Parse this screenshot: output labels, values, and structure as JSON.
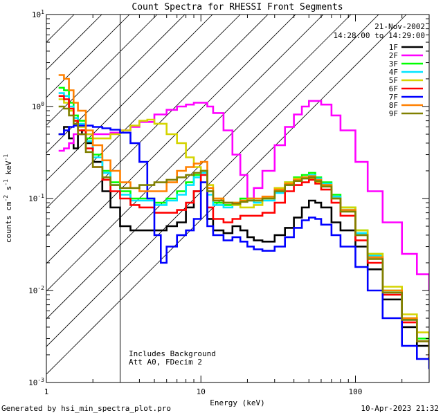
{
  "chart_data": {
    "type": "line",
    "title": "Count Spectra for RHESSI Front Segments",
    "xlabel": "Energy (keV)",
    "ylabel_parts": [
      "counts cm",
      "-2",
      " s",
      "-1",
      " keV",
      "-1"
    ],
    "xscale": "log",
    "yscale": "log",
    "xlim": [
      1,
      300
    ],
    "ylim": [
      0.001,
      10
    ],
    "x_ticks": [
      {
        "v": 1,
        "label": "1"
      },
      {
        "v": 10,
        "label": "10"
      },
      {
        "v": 100,
        "label": "100"
      }
    ],
    "y_ticks": [
      {
        "v": 0.001,
        "base": "10",
        "exp": "-3"
      },
      {
        "v": 0.01,
        "base": "10",
        "exp": "-2"
      },
      {
        "v": 0.1,
        "base": "10",
        "exp": "-1"
      },
      {
        "v": 1,
        "base": "10",
        "exp": "0"
      },
      {
        "v": 10,
        "base": "10",
        "exp": "1"
      }
    ],
    "date": "21-Nov-2002",
    "time_range": "14:28:00 to 14:29:00",
    "hatched_region": [
      1,
      3
    ],
    "annotations": [
      "Includes Background",
      "Att A0, FDecim 2"
    ],
    "series": [
      {
        "name": "1F",
        "color": "#000000",
        "x": [
          1.2,
          1.3,
          1.4,
          1.5,
          1.6,
          1.7,
          1.8,
          2,
          2.3,
          2.6,
          3,
          3.5,
          4,
          5,
          6,
          7,
          8,
          9,
          10,
          11,
          12,
          14,
          16,
          18,
          20,
          22,
          25,
          30,
          35,
          40,
          45,
          50,
          55,
          60,
          70,
          80,
          100,
          120,
          150,
          200,
          250,
          300
        ],
        "y": [
          0.5,
          0.6,
          0.45,
          0.35,
          0.5,
          0.55,
          0.4,
          0.25,
          0.12,
          0.08,
          0.05,
          0.045,
          0.045,
          0.045,
          0.05,
          0.055,
          0.08,
          0.12,
          0.2,
          0.06,
          0.045,
          0.042,
          0.05,
          0.045,
          0.038,
          0.035,
          0.034,
          0.04,
          0.048,
          0.062,
          0.08,
          0.095,
          0.09,
          0.08,
          0.055,
          0.045,
          0.03,
          0.017,
          0.008,
          0.004,
          0.0025,
          0.0018
        ]
      },
      {
        "name": "2F",
        "color": "#ff00ff",
        "x": [
          1.2,
          1.3,
          1.4,
          1.5,
          1.6,
          1.8,
          2,
          2.3,
          2.6,
          3,
          3.5,
          4,
          5,
          6,
          7,
          8,
          9,
          10,
          11,
          12,
          14,
          16,
          18,
          20,
          22,
          25,
          30,
          35,
          40,
          45,
          50,
          55,
          60,
          70,
          80,
          100,
          120,
          150,
          200,
          250,
          300
        ],
        "y": [
          0.33,
          0.35,
          0.4,
          0.5,
          0.5,
          0.5,
          0.5,
          0.5,
          0.52,
          0.55,
          0.6,
          0.68,
          0.82,
          0.92,
          1.0,
          1.05,
          1.1,
          1.1,
          1.0,
          0.85,
          0.55,
          0.3,
          0.18,
          0.1,
          0.13,
          0.2,
          0.38,
          0.6,
          0.82,
          1.0,
          1.15,
          1.15,
          1.05,
          0.8,
          0.55,
          0.25,
          0.12,
          0.055,
          0.025,
          0.015,
          0.01
        ]
      },
      {
        "name": "3F",
        "color": "#00ff00",
        "x": [
          1.2,
          1.3,
          1.4,
          1.5,
          1.6,
          1.8,
          2,
          2.3,
          2.6,
          3,
          3.5,
          4,
          5,
          6,
          7,
          8,
          9,
          10,
          11,
          12,
          14,
          16,
          18,
          20,
          22,
          25,
          30,
          35,
          40,
          45,
          50,
          55,
          60,
          70,
          80,
          100,
          120,
          150,
          200,
          250,
          300
        ],
        "y": [
          1.6,
          1.5,
          1.1,
          0.8,
          0.7,
          0.45,
          0.3,
          0.2,
          0.15,
          0.12,
          0.1,
          0.1,
          0.09,
          0.1,
          0.12,
          0.15,
          0.18,
          0.2,
          0.12,
          0.09,
          0.085,
          0.09,
          0.1,
          0.1,
          0.095,
          0.1,
          0.12,
          0.15,
          0.17,
          0.18,
          0.19,
          0.17,
          0.15,
          0.11,
          0.08,
          0.045,
          0.025,
          0.01,
          0.005,
          0.003,
          0.002
        ]
      },
      {
        "name": "4F",
        "color": "#00e5ff",
        "x": [
          1.2,
          1.3,
          1.4,
          1.5,
          1.6,
          1.8,
          2,
          2.3,
          2.6,
          3,
          3.5,
          4,
          5,
          6,
          7,
          8,
          9,
          10,
          11,
          12,
          14,
          16,
          18,
          20,
          22,
          25,
          30,
          35,
          40,
          45,
          50,
          55,
          60,
          70,
          80,
          100,
          120,
          150,
          200,
          250,
          300
        ],
        "y": [
          1.4,
          1.3,
          1.0,
          0.75,
          0.65,
          0.42,
          0.28,
          0.19,
          0.14,
          0.11,
          0.095,
          0.095,
          0.085,
          0.095,
          0.11,
          0.14,
          0.17,
          0.19,
          0.11,
          0.085,
          0.08,
          0.085,
          0.095,
          0.095,
          0.09,
          0.095,
          0.115,
          0.14,
          0.16,
          0.17,
          0.18,
          0.165,
          0.145,
          0.105,
          0.075,
          0.042,
          0.024,
          0.0095,
          0.0048,
          0.0028,
          0.0019
        ]
      },
      {
        "name": "5F",
        "color": "#d4d400",
        "x": [
          1.2,
          1.3,
          1.4,
          1.5,
          1.6,
          1.8,
          2,
          2.3,
          2.6,
          3,
          3.5,
          4,
          4.5,
          5,
          6,
          7,
          8,
          9,
          10,
          11,
          12,
          14,
          16,
          18,
          20,
          22,
          25,
          30,
          35,
          40,
          45,
          50,
          55,
          60,
          70,
          80,
          100,
          120,
          150,
          200,
          250,
          300
        ],
        "y": [
          1.2,
          1.1,
          0.9,
          0.7,
          0.6,
          0.5,
          0.45,
          0.45,
          0.5,
          0.55,
          0.62,
          0.7,
          0.72,
          0.65,
          0.5,
          0.4,
          0.28,
          0.22,
          0.2,
          0.14,
          0.1,
          0.09,
          0.085,
          0.08,
          0.08,
          0.085,
          0.1,
          0.13,
          0.15,
          0.165,
          0.17,
          0.165,
          0.15,
          0.14,
          0.1,
          0.08,
          0.045,
          0.025,
          0.011,
          0.0055,
          0.0035,
          0.0025
        ]
      },
      {
        "name": "6F",
        "color": "#ff0000",
        "x": [
          1.2,
          1.3,
          1.4,
          1.5,
          1.6,
          1.8,
          2,
          2.3,
          2.6,
          3,
          3.5,
          4,
          5,
          6,
          7,
          8,
          9,
          10,
          11,
          12,
          14,
          16,
          18,
          20,
          22,
          25,
          30,
          35,
          40,
          45,
          50,
          55,
          60,
          70,
          80,
          100,
          120,
          150,
          200,
          250,
          300
        ],
        "y": [
          1.3,
          1.2,
          0.95,
          0.7,
          0.55,
          0.35,
          0.22,
          0.16,
          0.12,
          0.1,
          0.085,
          0.08,
          0.07,
          0.07,
          0.075,
          0.09,
          0.12,
          0.18,
          0.08,
          0.06,
          0.055,
          0.06,
          0.065,
          0.065,
          0.065,
          0.07,
          0.09,
          0.12,
          0.14,
          0.15,
          0.16,
          0.145,
          0.125,
          0.09,
          0.065,
          0.035,
          0.02,
          0.009,
          0.0045,
          0.0028,
          0.0019
        ]
      },
      {
        "name": "7F",
        "color": "#0000ff",
        "x": [
          1.2,
          1.3,
          1.4,
          1.5,
          1.6,
          1.8,
          2,
          2.3,
          2.6,
          3,
          3.5,
          4,
          4.5,
          5,
          5.5,
          6,
          7,
          8,
          9,
          10,
          11,
          12,
          14,
          16,
          18,
          20,
          22,
          25,
          30,
          35,
          40,
          45,
          50,
          55,
          60,
          70,
          80,
          100,
          120,
          150,
          200,
          250,
          300
        ],
        "y": [
          0.5,
          0.55,
          0.6,
          0.62,
          0.62,
          0.62,
          0.6,
          0.58,
          0.56,
          0.52,
          0.4,
          0.25,
          0.1,
          0.04,
          0.02,
          0.03,
          0.04,
          0.045,
          0.06,
          0.15,
          0.05,
          0.04,
          0.035,
          0.038,
          0.034,
          0.03,
          0.028,
          0.027,
          0.03,
          0.038,
          0.048,
          0.058,
          0.062,
          0.06,
          0.052,
          0.04,
          0.03,
          0.018,
          0.01,
          0.005,
          0.0025,
          0.0018,
          0.0014
        ]
      },
      {
        "name": "8F",
        "color": "#ff8000",
        "x": [
          1.2,
          1.3,
          1.4,
          1.5,
          1.6,
          1.8,
          2,
          2.3,
          2.6,
          3,
          3.5,
          4,
          5,
          6,
          7,
          8,
          9,
          10,
          11,
          12,
          14,
          16,
          18,
          20,
          22,
          25,
          30,
          35,
          40,
          45,
          50,
          55,
          60,
          70,
          80,
          100,
          120,
          150,
          200,
          250,
          300
        ],
        "y": [
          2.2,
          2.0,
          1.5,
          1.1,
          0.9,
          0.55,
          0.38,
          0.26,
          0.2,
          0.15,
          0.13,
          0.12,
          0.12,
          0.15,
          0.2,
          0.22,
          0.24,
          0.25,
          0.13,
          0.1,
          0.09,
          0.09,
          0.095,
          0.1,
          0.1,
          0.105,
          0.125,
          0.145,
          0.16,
          0.17,
          0.175,
          0.16,
          0.14,
          0.1,
          0.075,
          0.04,
          0.023,
          0.01,
          0.005,
          0.0028,
          0.002
        ]
      },
      {
        "name": "9F",
        "color": "#808000",
        "x": [
          1.2,
          1.3,
          1.4,
          1.5,
          1.6,
          1.8,
          2,
          2.3,
          2.6,
          3,
          3.5,
          4,
          5,
          6,
          7,
          8,
          9,
          10,
          11,
          12,
          14,
          16,
          18,
          20,
          22,
          25,
          30,
          35,
          40,
          45,
          50,
          55,
          60,
          70,
          80,
          100,
          120,
          150,
          200,
          250,
          300
        ],
        "y": [
          1.0,
          0.95,
          0.8,
          0.65,
          0.5,
          0.32,
          0.22,
          0.17,
          0.14,
          0.13,
          0.13,
          0.14,
          0.15,
          0.16,
          0.17,
          0.18,
          0.19,
          0.2,
          0.12,
          0.095,
          0.09,
          0.088,
          0.092,
          0.095,
          0.095,
          0.1,
          0.12,
          0.14,
          0.155,
          0.165,
          0.17,
          0.155,
          0.135,
          0.1,
          0.072,
          0.04,
          0.022,
          0.0095,
          0.0048,
          0.0028,
          0.002
        ]
      }
    ]
  },
  "footer": {
    "left": "Generated by hsi_min_spectra_plot.pro",
    "right": "10-Apr-2023 21:32"
  }
}
